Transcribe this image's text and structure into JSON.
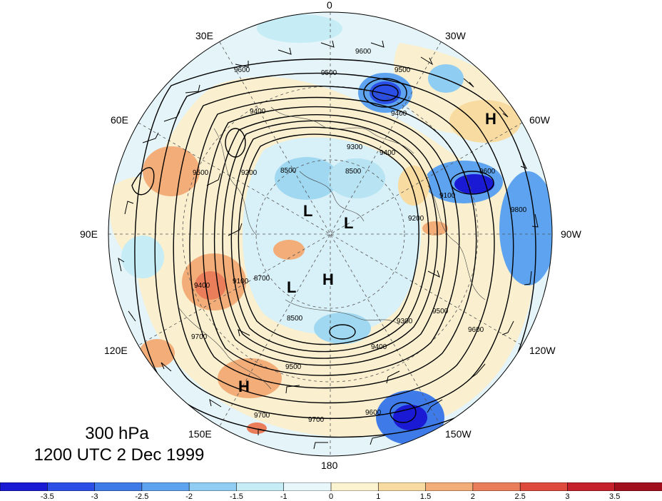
{
  "map": {
    "level_title": "300 hPa",
    "time_title": "1200 UTC 2 Dec 1999",
    "longitude_labels": {
      "top": "0",
      "top_left": "30E",
      "top_right": "30W",
      "upper_left": "60E",
      "upper_right": "60W",
      "left": "90E",
      "right": "90W",
      "lower_left": "120E",
      "lower_right": "120W",
      "bottom_left": "150E",
      "bottom_right": "150W",
      "bottom": "180"
    },
    "pressure_centers": [
      "H",
      "L",
      "L",
      "L",
      "H",
      "H"
    ],
    "contour_labels": [
      "9600",
      "9500",
      "9500",
      "9400",
      "9600",
      "9400",
      "9300",
      "9400",
      "9200",
      "8500",
      "8500",
      "9500",
      "9100",
      "9600",
      "9400",
      "9100",
      "8700",
      "8500",
      "9300",
      "9500",
      "9700",
      "9500",
      "9400",
      "9700",
      "9600",
      "9700",
      "9600",
      "9800",
      "9200"
    ]
  },
  "colorbar": {
    "ticks": [
      "-3.5",
      "-3",
      "-2.5",
      "-2",
      "-1.5",
      "-1",
      "0",
      "1",
      "1.5",
      "2",
      "2.5",
      "3",
      "3.5"
    ],
    "colors": [
      "#1a1ad4",
      "#2b4fe6",
      "#3f7be8",
      "#5ea3ef",
      "#8fcdf2",
      "#c6ecf6",
      "#e7f7fb",
      "#fbf2d0",
      "#f8dba0",
      "#f2ad78",
      "#ea7e5a",
      "#de4b3c",
      "#c51f2b",
      "#a10f1e"
    ]
  }
}
